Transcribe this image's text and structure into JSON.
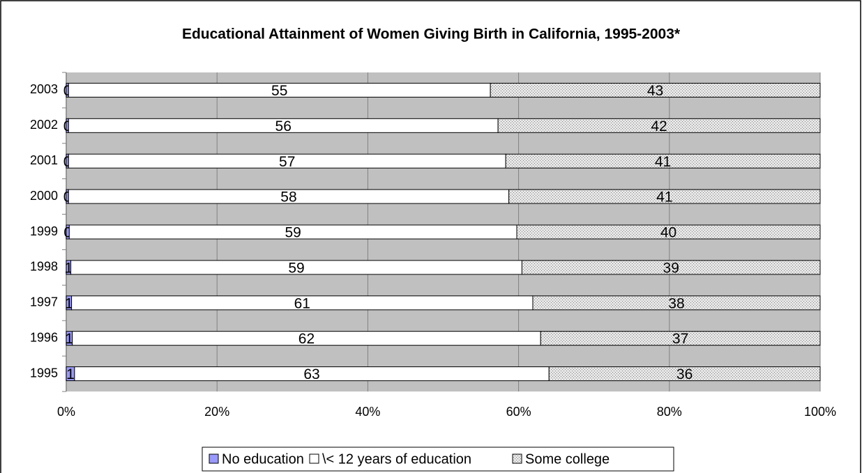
{
  "chart_data": {
    "type": "bar",
    "orientation": "horizontal",
    "stack": "percent",
    "title": "Educational Attainment of Women Giving Birth in California, 1995-2003*",
    "categories": [
      "2003",
      "2002",
      "2001",
      "2000",
      "1999",
      "1998",
      "1997",
      "1996",
      "1995"
    ],
    "series": [
      {
        "name": "No education",
        "color": "#9999ff",
        "values": [
          0.3,
          0.3,
          0.3,
          0.3,
          0.4,
          0.6,
          0.7,
          0.8,
          1.1
        ],
        "value_labels": [
          "0",
          "0",
          "0",
          "0",
          "0",
          "1",
          "1",
          "1",
          "1"
        ]
      },
      {
        "name": "\\< 12 years of education",
        "color": "#ffffff",
        "values": [
          55,
          56,
          57,
          58,
          59,
          59,
          61,
          62,
          63
        ]
      },
      {
        "name": "Some college",
        "color": "#d9d9d9",
        "values": [
          43,
          42,
          41,
          41,
          40,
          39,
          38,
          37,
          36
        ]
      }
    ],
    "xlim": [
      0,
      100
    ],
    "xticks": [
      {
        "value": 0,
        "label": "0%"
      },
      {
        "value": 20,
        "label": "20%"
      },
      {
        "value": 40,
        "label": "40%"
      },
      {
        "value": 60,
        "label": "60%"
      },
      {
        "value": 80,
        "label": "80%"
      },
      {
        "value": 100,
        "label": "100%"
      }
    ],
    "grid": true,
    "legend": "bottom"
  }
}
